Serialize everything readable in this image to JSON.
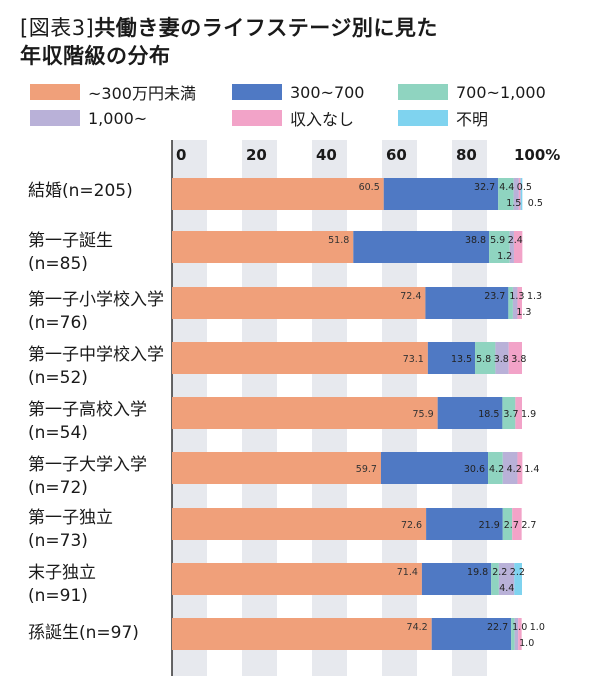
{
  "title": {
    "prefix": "[図表3]",
    "line1": "共働き妻のライフステージ別に見た",
    "line2": "年収階級の分布"
  },
  "colors": [
    "#f0a07a",
    "#4f79c4",
    "#8fd4c0",
    "#b9b1d8",
    "#f2a3c8",
    "#7fd3ef"
  ],
  "chart_data": {
    "type": "bar",
    "orientation": "horizontal",
    "stacked": true,
    "x_ticks": [
      "0",
      "20",
      "40",
      "60",
      "80",
      "100%"
    ],
    "xlim": [
      0,
      100
    ],
    "legend_position": "top",
    "categories": [
      [
        "結婚(n=205)"
      ],
      [
        "第一子誕生",
        "(n=85)"
      ],
      [
        "第一子小学校入学",
        "(n=76)"
      ],
      [
        "第一子中学校入学",
        "(n=52)"
      ],
      [
        "第一子高校入学",
        "(n=54)"
      ],
      [
        "第一子大学入学",
        "(n=72)"
      ],
      [
        "第一子独立",
        "(n=73)"
      ],
      [
        "末子独立",
        "(n=91)"
      ],
      [
        "孫誕生(n=97)"
      ]
    ],
    "series": [
      {
        "name": "~300万円未満",
        "values": [
          60.5,
          51.8,
          72.4,
          73.1,
          75.9,
          59.7,
          72.6,
          71.4,
          74.2
        ]
      },
      {
        "name": "300~700",
        "values": [
          32.7,
          38.8,
          23.7,
          13.5,
          18.5,
          30.6,
          21.9,
          19.8,
          22.7
        ]
      },
      {
        "name": "700~1,000",
        "values": [
          4.4,
          5.9,
          1.3,
          5.8,
          3.7,
          4.2,
          2.7,
          2.2,
          1.0
        ]
      },
      {
        "name": "1,000~",
        "values": [
          1.5,
          1.2,
          1.3,
          3.8,
          0,
          4.2,
          0,
          4.4,
          1.0
        ]
      },
      {
        "name": "収入なし",
        "values": [
          0.5,
          2.4,
          1.3,
          3.8,
          1.9,
          1.4,
          2.7,
          0,
          1.0
        ]
      },
      {
        "name": "不明",
        "values": [
          0.5,
          0,
          0,
          0,
          0,
          0,
          0,
          2.2,
          0
        ]
      }
    ],
    "data_labels": [
      [
        [
          "60.5",
          "32.7",
          "4.4",
          "0.5"
        ],
        [
          "1.5",
          "0.5"
        ]
      ],
      [
        [
          "51.8",
          "38.8",
          "5.9",
          "2.4"
        ],
        [
          "1.2"
        ]
      ],
      [
        [
          "72.4",
          "23.7",
          "1.3",
          "1.3"
        ],
        [
          "1.3"
        ]
      ],
      [
        [
          "73.1",
          "13.5",
          "5.8",
          "3.8",
          "3.8"
        ],
        []
      ],
      [
        [
          "75.9",
          "18.5",
          "3.7",
          "1.9"
        ],
        []
      ],
      [
        [
          "59.7",
          "30.6",
          "4.2",
          "4.2",
          "1.4"
        ],
        []
      ],
      [
        [
          "72.6",
          "21.9",
          "2.7",
          "2.7"
        ],
        []
      ],
      [
        [
          "71.4",
          "19.8",
          "2.2",
          "2.2"
        ],
        [
          "4.4"
        ]
      ],
      [
        [
          "74.2",
          "22.7",
          "1.0",
          "1.0"
        ],
        [
          "1.0"
        ]
      ]
    ]
  }
}
